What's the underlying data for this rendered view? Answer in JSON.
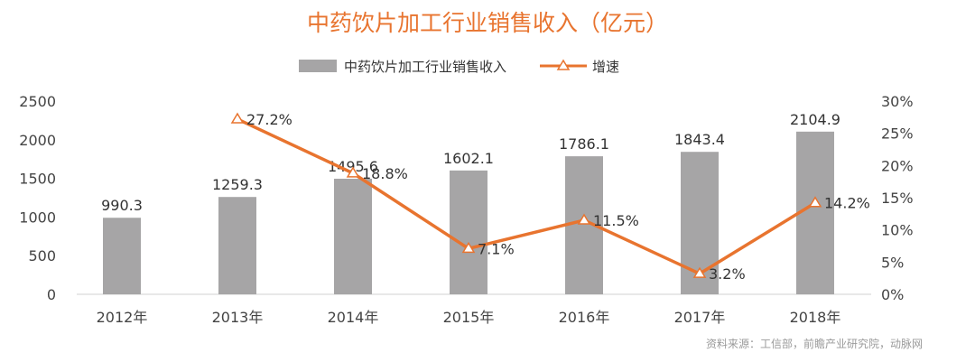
{
  "chart_data": {
    "type": "bar",
    "title": "中药饮片加工行业销售收入（亿元）",
    "categories": [
      "2012年",
      "2013年",
      "2014年",
      "2015年",
      "2016年",
      "2017年",
      "2018年"
    ],
    "series": [
      {
        "name": "中药饮片加工行业销售收入",
        "type": "bar",
        "axis": "left",
        "color": "#a6a5a6",
        "values": [
          990.3,
          1259.3,
          1495.6,
          1602.1,
          1786.1,
          1843.4,
          2104.9
        ],
        "labels": [
          "990.3",
          "1259.3",
          "1495.6",
          "1602.1",
          "1786.1",
          "1843.4",
          "2104.9"
        ]
      },
      {
        "name": "增速",
        "type": "line",
        "axis": "right",
        "color": "#e8742f",
        "values": [
          null,
          27.2,
          18.8,
          7.1,
          11.5,
          3.2,
          14.2
        ],
        "labels": [
          null,
          "27.2%",
          "18.8%",
          "7.1%",
          "11.5%",
          "3.2%",
          "14.2%"
        ]
      }
    ],
    "y_left": {
      "min": 0,
      "max": 2500,
      "ticks": [
        "0",
        "500",
        "1000",
        "1500",
        "2000",
        "2500"
      ]
    },
    "y_right": {
      "min": 0,
      "max": 30,
      "ticks": [
        "0%",
        "5%",
        "10%",
        "15%",
        "20%",
        "25%",
        "30%"
      ]
    },
    "legend": "top-center",
    "grid": false
  },
  "source": "资料来源：工信部，前瞻产业研究院，动脉网"
}
